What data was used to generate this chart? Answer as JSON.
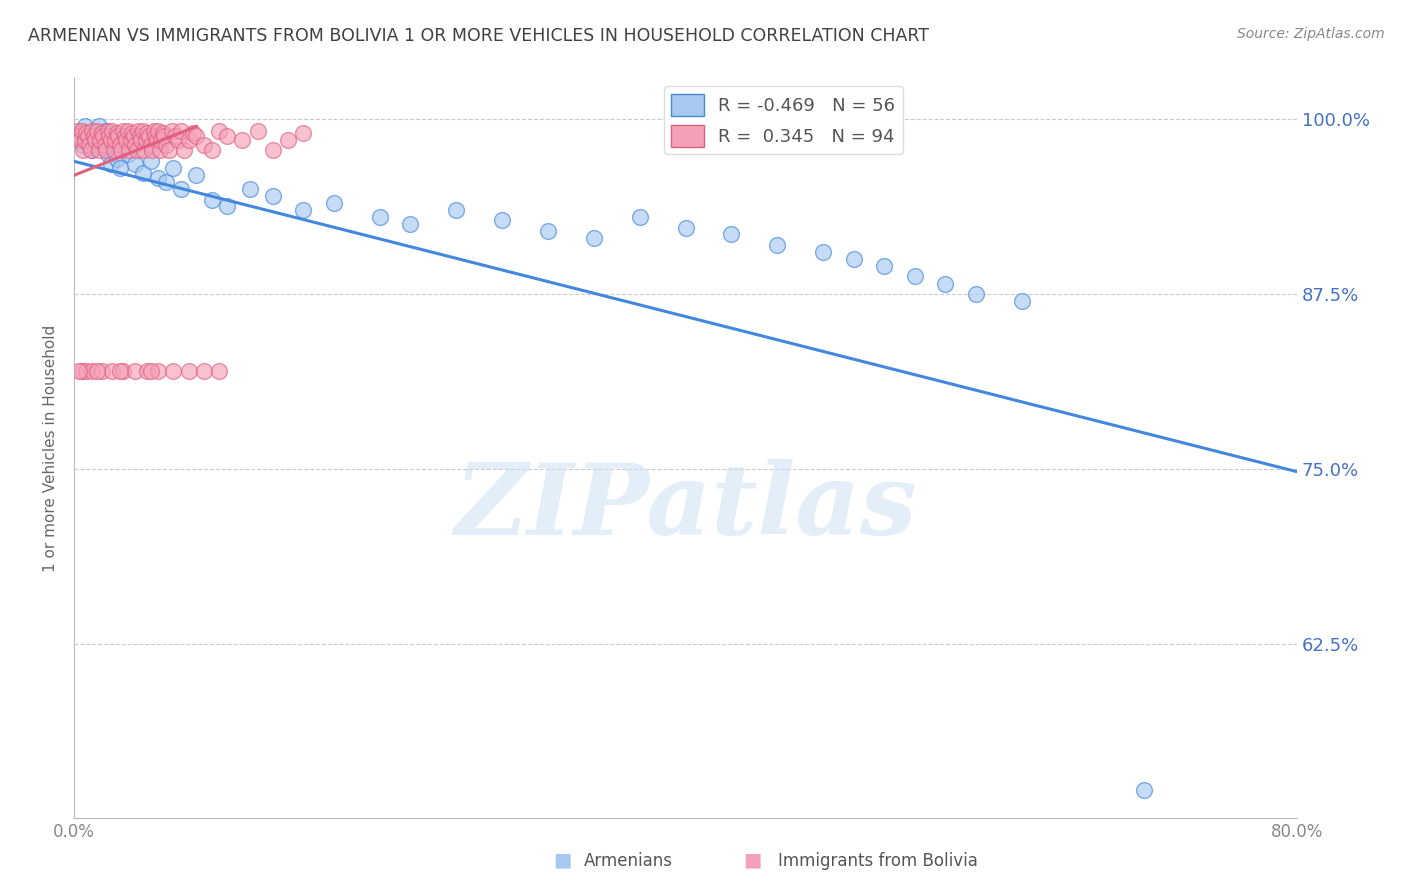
{
  "title": "ARMENIAN VS IMMIGRANTS FROM BOLIVIA 1 OR MORE VEHICLES IN HOUSEHOLD CORRELATION CHART",
  "source": "Source: ZipAtlas.com",
  "ylabel": "1 or more Vehicles in Household",
  "xlim": [
    0.0,
    0.8
  ],
  "ylim": [
    0.5,
    1.03
  ],
  "yticks": [
    0.625,
    0.75,
    0.875,
    1.0
  ],
  "ytick_labels": [
    "62.5%",
    "75.0%",
    "87.5%",
    "100.0%"
  ],
  "xticks": [
    0.0,
    0.1,
    0.2,
    0.3,
    0.4,
    0.5,
    0.6,
    0.7,
    0.8
  ],
  "xtick_labels": [
    "0.0%",
    "",
    "",
    "",
    "",
    "",
    "",
    "",
    "80.0%"
  ],
  "legend_r_armenian": "R = -0.469",
  "legend_n_armenian": "N = 56",
  "legend_r_bolivia": "R =  0.345",
  "legend_n_bolivia": "N = 94",
  "color_armenian": "#a8c8f0",
  "color_bolivia": "#f4a0b8",
  "color_line_armenian": "#4488dd",
  "color_line_bolivia": "#e06080",
  "watermark": "ZIPatlas",
  "watermark_color": "#cce0f5",
  "title_color": "#404040",
  "source_color": "#888888",
  "axis_label_color": "#666666",
  "tick_label_color_right": "#4472c4",
  "tick_label_color_bottom": "#888888",
  "grid_color": "#cccccc",
  "background_color": "#ffffff",
  "legend_label_color": "#555555",
  "armenian_x": [
    0.003,
    0.004,
    0.005,
    0.006,
    0.007,
    0.008,
    0.009,
    0.01,
    0.011,
    0.012,
    0.013,
    0.014,
    0.015,
    0.016,
    0.017,
    0.018,
    0.019,
    0.02,
    0.022,
    0.024,
    0.026,
    0.028,
    0.03,
    0.035,
    0.04,
    0.045,
    0.05,
    0.055,
    0.06,
    0.065,
    0.07,
    0.08,
    0.09,
    0.1,
    0.115,
    0.13,
    0.15,
    0.17,
    0.2,
    0.22,
    0.25,
    0.28,
    0.31,
    0.34,
    0.37,
    0.4,
    0.43,
    0.46,
    0.49,
    0.51,
    0.53,
    0.55,
    0.57,
    0.59,
    0.62,
    0.7
  ],
  "armenian_y": [
    0.99,
    0.988,
    0.985,
    0.982,
    0.995,
    0.99,
    0.988,
    0.985,
    0.98,
    0.978,
    0.992,
    0.988,
    0.985,
    0.995,
    0.99,
    0.985,
    0.98,
    0.992,
    0.975,
    0.968,
    0.98,
    0.972,
    0.965,
    0.975,
    0.968,
    0.962,
    0.97,
    0.958,
    0.955,
    0.965,
    0.95,
    0.96,
    0.942,
    0.938,
    0.95,
    0.945,
    0.935,
    0.94,
    0.93,
    0.925,
    0.935,
    0.928,
    0.92,
    0.915,
    0.93,
    0.922,
    0.918,
    0.91,
    0.905,
    0.9,
    0.895,
    0.888,
    0.882,
    0.875,
    0.87,
    0.52
  ],
  "bolivia_x": [
    0.002,
    0.003,
    0.004,
    0.005,
    0.006,
    0.007,
    0.008,
    0.009,
    0.01,
    0.011,
    0.012,
    0.013,
    0.014,
    0.015,
    0.016,
    0.017,
    0.018,
    0.019,
    0.02,
    0.021,
    0.022,
    0.023,
    0.024,
    0.025,
    0.026,
    0.027,
    0.028,
    0.029,
    0.03,
    0.031,
    0.032,
    0.033,
    0.034,
    0.035,
    0.036,
    0.037,
    0.038,
    0.039,
    0.04,
    0.041,
    0.042,
    0.043,
    0.044,
    0.045,
    0.046,
    0.047,
    0.048,
    0.049,
    0.05,
    0.051,
    0.052,
    0.053,
    0.054,
    0.055,
    0.056,
    0.057,
    0.058,
    0.059,
    0.06,
    0.062,
    0.064,
    0.066,
    0.068,
    0.07,
    0.072,
    0.075,
    0.078,
    0.08,
    0.085,
    0.09,
    0.095,
    0.1,
    0.11,
    0.12,
    0.13,
    0.14,
    0.15,
    0.005,
    0.008,
    0.012,
    0.018,
    0.025,
    0.032,
    0.04,
    0.048,
    0.055,
    0.065,
    0.075,
    0.085,
    0.095,
    0.003,
    0.015,
    0.03,
    0.05
  ],
  "bolivia_y": [
    0.992,
    0.988,
    0.985,
    0.992,
    0.978,
    0.985,
    0.99,
    0.988,
    0.982,
    0.978,
    0.992,
    0.988,
    0.985,
    0.992,
    0.978,
    0.985,
    0.99,
    0.988,
    0.982,
    0.978,
    0.992,
    0.988,
    0.985,
    0.992,
    0.978,
    0.985,
    0.99,
    0.988,
    0.982,
    0.978,
    0.992,
    0.988,
    0.985,
    0.992,
    0.978,
    0.985,
    0.99,
    0.988,
    0.982,
    0.978,
    0.992,
    0.988,
    0.985,
    0.992,
    0.978,
    0.985,
    0.99,
    0.988,
    0.982,
    0.978,
    0.992,
    0.988,
    0.985,
    0.992,
    0.978,
    0.985,
    0.99,
    0.988,
    0.982,
    0.978,
    0.992,
    0.988,
    0.985,
    0.992,
    0.978,
    0.985,
    0.99,
    0.988,
    0.982,
    0.978,
    0.992,
    0.988,
    0.985,
    0.992,
    0.978,
    0.985,
    0.99,
    0.82,
    0.82,
    0.82,
    0.82,
    0.82,
    0.82,
    0.82,
    0.82,
    0.82,
    0.82,
    0.82,
    0.82,
    0.82,
    0.82,
    0.82,
    0.82,
    0.82
  ],
  "arm_line_x": [
    0.0,
    0.8
  ],
  "arm_line_y": [
    0.97,
    0.748
  ],
  "bol_line_x": [
    0.0,
    0.08
  ],
  "bol_line_y": [
    0.96,
    0.995
  ]
}
